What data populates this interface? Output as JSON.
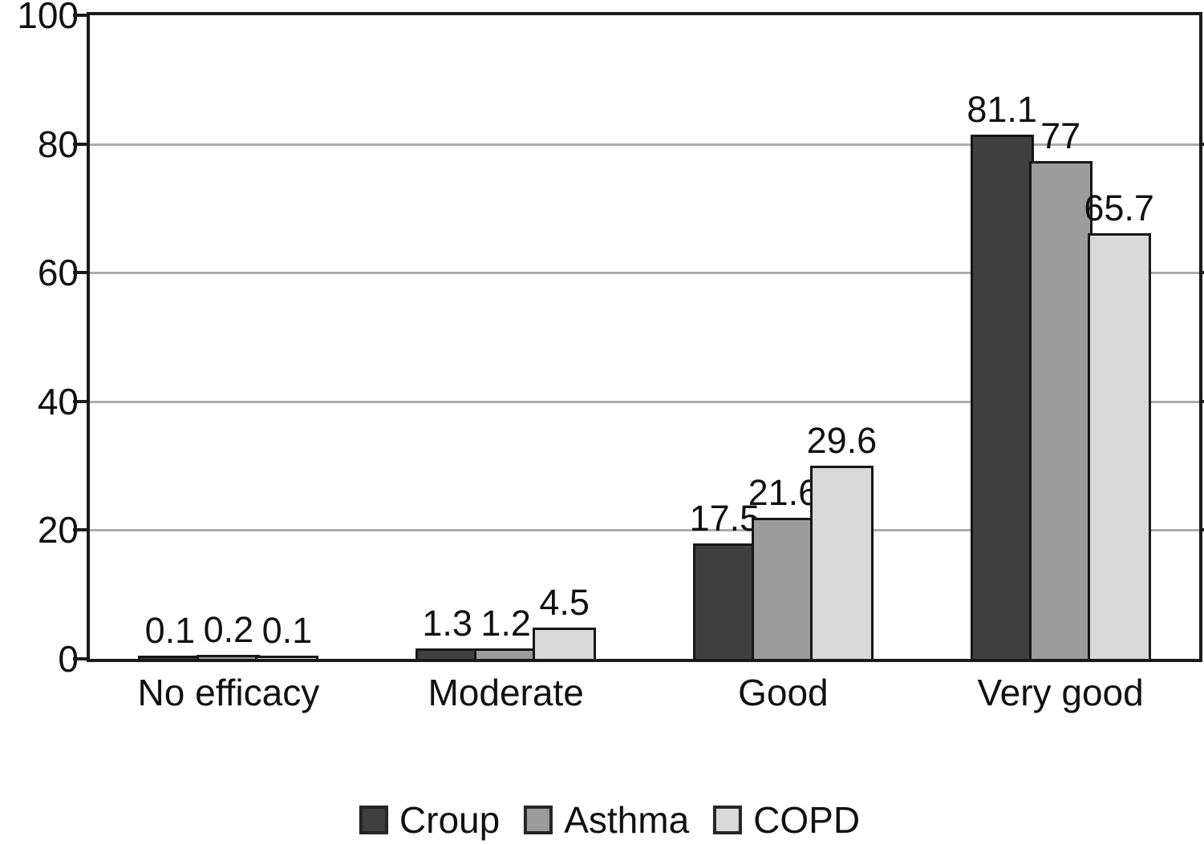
{
  "chart_data": {
    "type": "bar",
    "title": "",
    "xlabel": "",
    "ylabel": "",
    "categories": [
      "No efficacy",
      "Moderate",
      "Good",
      "Very good"
    ],
    "series": [
      {
        "name": "Croup",
        "color": "#404040",
        "values": [
          0.1,
          1.3,
          17.5,
          81.1
        ],
        "labels": [
          "0.1",
          "1.3",
          "17.5",
          "81.1"
        ]
      },
      {
        "name": "Asthma",
        "color": "#9c9c9c",
        "values": [
          0.2,
          1.2,
          21.6,
          77
        ],
        "labels": [
          "0.2",
          "1.2",
          "21.6",
          "77"
        ]
      },
      {
        "name": "COPD",
        "color": "#d9d9d9",
        "values": [
          0.1,
          4.5,
          29.6,
          65.7
        ],
        "labels": [
          "0.1",
          "4.5",
          "29.6",
          "65.7"
        ]
      }
    ],
    "y_axis": {
      "min": 0,
      "max": 100,
      "tick_values": [
        0,
        20,
        40,
        60,
        80,
        100
      ],
      "tick_labels": [
        "0",
        "20",
        "40",
        "60",
        "80",
        "100"
      ],
      "gridline_values": [
        20,
        40,
        60,
        80
      ]
    },
    "grid": "horizontal",
    "gridline_color": "#ababab",
    "axis_color": "#1a1a1a",
    "bar_border_color": "#161616",
    "text_color": "#111111",
    "legend_position": "bottom",
    "legend_labels": [
      "Croup",
      "Asthma",
      "COPD"
    ]
  }
}
